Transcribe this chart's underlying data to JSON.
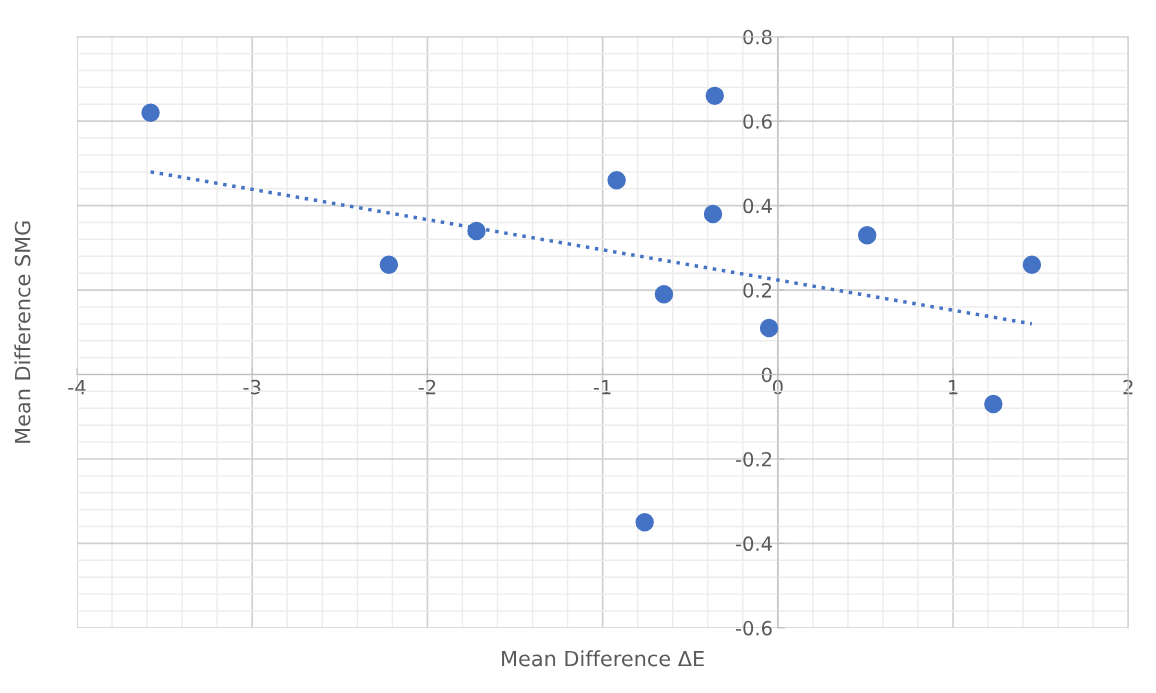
{
  "chart_data": {
    "type": "scatter",
    "xlabel": "Mean Difference ΔE",
    "ylabel": "Mean Difference SMG",
    "x": [
      -3.58,
      -2.22,
      -1.72,
      -0.92,
      -0.36,
      -0.37,
      -0.65,
      -0.05,
      0.51,
      1.45,
      1.23,
      -0.76
    ],
    "series": [
      {
        "color": "#4472c4",
        "marker": "circle",
        "values": [
          0.62,
          0.26,
          0.34,
          0.46,
          0.66,
          0.38,
          0.19,
          0.11,
          0.33,
          0.26,
          -0.07,
          -0.35
        ]
      },
      {
        "type": "line",
        "color": "#4472c4",
        "line_style": "dotted",
        "x": [
          -3.58,
          1.45
        ],
        "values": [
          0.48,
          0.12
        ]
      }
    ],
    "xlim": [
      -4,
      2
    ],
    "xticks": [
      -4,
      -3,
      -2,
      -1,
      0,
      1,
      2
    ],
    "ylim": [
      -0.6,
      0.8
    ],
    "yticks": [
      -0.6,
      -0.4,
      -0.2,
      0,
      0.2,
      0.4,
      0.6,
      0.8
    ],
    "grid": true
  }
}
